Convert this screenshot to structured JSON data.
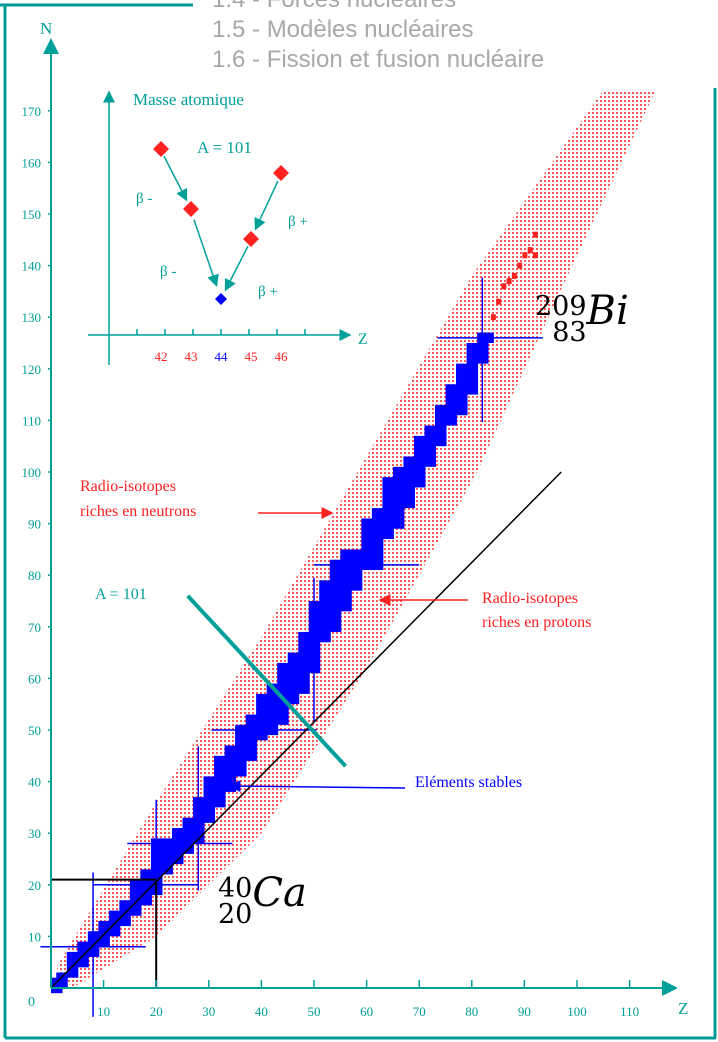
{
  "header": {
    "items": [
      "1.4 - Forces nucléaires",
      "1.5 - Modèles nucléaires",
      "1.6 - Fission et fusion nucléaire"
    ]
  },
  "colors": {
    "teal": "#00a09a",
    "stable": "#0000ff",
    "radio": "#ff2020",
    "frame": "#009a94"
  },
  "chart_data": {
    "type": "scatter",
    "title": "",
    "xlabel": "Z",
    "ylabel": "N",
    "origin_label": "0",
    "xlim": [
      0,
      118
    ],
    "ylim": [
      0,
      175
    ],
    "xticks": [
      10,
      20,
      30,
      40,
      50,
      60,
      70,
      80,
      90,
      100,
      110
    ],
    "yticks": [
      10,
      20,
      30,
      40,
      50,
      60,
      70,
      80,
      90,
      100,
      110,
      120,
      130,
      140,
      150,
      160,
      170
    ],
    "radio_band": {
      "neutron_rich_edge": [
        [
          1,
          4
        ],
        [
          20,
          36
        ],
        [
          40,
          68
        ],
        [
          60,
          103
        ],
        [
          80,
          138
        ],
        [
          105,
          174
        ]
      ],
      "proton_rich_edge": [
        [
          115,
          174
        ],
        [
          100,
          142
        ],
        [
          81,
          100
        ],
        [
          60,
          62
        ],
        [
          40,
          30
        ],
        [
          20,
          10
        ],
        [
          4,
          0
        ]
      ]
    },
    "radio_known_heavy": [
      [
        84,
        130
      ],
      [
        85,
        133
      ],
      [
        86,
        136
      ],
      [
        87,
        137
      ],
      [
        88,
        138
      ],
      [
        89,
        140
      ],
      [
        90,
        142
      ],
      [
        91,
        143
      ],
      [
        92,
        146
      ],
      [
        92,
        142
      ]
    ],
    "stable": [
      [
        1,
        0,
        1
      ],
      [
        2,
        1,
        2
      ],
      [
        4,
        3,
        6
      ],
      [
        6,
        5,
        8
      ],
      [
        8,
        7,
        10
      ],
      [
        10,
        9,
        12
      ],
      [
        12,
        11,
        14
      ],
      [
        14,
        13,
        16
      ],
      [
        16,
        15,
        20
      ],
      [
        18,
        17,
        22
      ],
      [
        20,
        19,
        28
      ],
      [
        22,
        23,
        28
      ],
      [
        24,
        25,
        30
      ],
      [
        26,
        27,
        32
      ],
      [
        28,
        29,
        36
      ],
      [
        30,
        33,
        40
      ],
      [
        32,
        36,
        44
      ],
      [
        34,
        39,
        46
      ],
      [
        36,
        42,
        50
      ],
      [
        38,
        45,
        52
      ],
      [
        40,
        49,
        56
      ],
      [
        42,
        50,
        58
      ],
      [
        44,
        52,
        62
      ],
      [
        46,
        56,
        64
      ],
      [
        48,
        58,
        68
      ],
      [
        50,
        62,
        74
      ],
      [
        52,
        68,
        78
      ],
      [
        54,
        70,
        82
      ],
      [
        56,
        74,
        84
      ],
      [
        58,
        78,
        84
      ],
      [
        60,
        82,
        90
      ],
      [
        62,
        82,
        92
      ],
      [
        64,
        88,
        98
      ],
      [
        66,
        90,
        100
      ],
      [
        68,
        94,
        102
      ],
      [
        70,
        98,
        106
      ],
      [
        72,
        102,
        108
      ],
      [
        74,
        106,
        112
      ],
      [
        76,
        110,
        116
      ],
      [
        78,
        112,
        120
      ],
      [
        80,
        116,
        124
      ],
      [
        82,
        122,
        126
      ],
      [
        83,
        126,
        126
      ]
    ],
    "magic_numbers": [
      8,
      20,
      28,
      50,
      82,
      126
    ],
    "lines": {
      "n_equals_z": {
        "from": [
          0,
          0
        ],
        "to": [
          97,
          100
        ]
      },
      "ca_guides": {
        "n": 21,
        "z": 20
      },
      "isobar_a101": {
        "from": [
          26,
          76
        ],
        "to": [
          56,
          43
        ]
      }
    },
    "annotations": {
      "neutron_rich": [
        "Radio-isotopes",
        "riches en neutrons"
      ],
      "proton_rich": [
        "Radio-isotopes",
        "riches en protons"
      ],
      "stable": "Eléments stables",
      "isobar": "A = 101"
    },
    "isotopes": [
      {
        "mass": "209",
        "z": "83",
        "symbol": "Bi"
      },
      {
        "mass": "40",
        "z": "20",
        "symbol": "Ca"
      }
    ],
    "inset": {
      "ylabel": "Masse atomique",
      "xlabel": "Z",
      "title": "A = 101",
      "points": [
        {
          "z": "42",
          "level": 5,
          "stable": false
        },
        {
          "z": "43",
          "level": 3,
          "stable": false
        },
        {
          "z": "44",
          "level": 0,
          "stable": true
        },
        {
          "z": "45",
          "level": 2,
          "stable": false
        },
        {
          "z": "46",
          "level": 4.2,
          "stable": false
        }
      ],
      "decay_labels": [
        "β -",
        "β -",
        "β +",
        "β +"
      ]
    }
  }
}
